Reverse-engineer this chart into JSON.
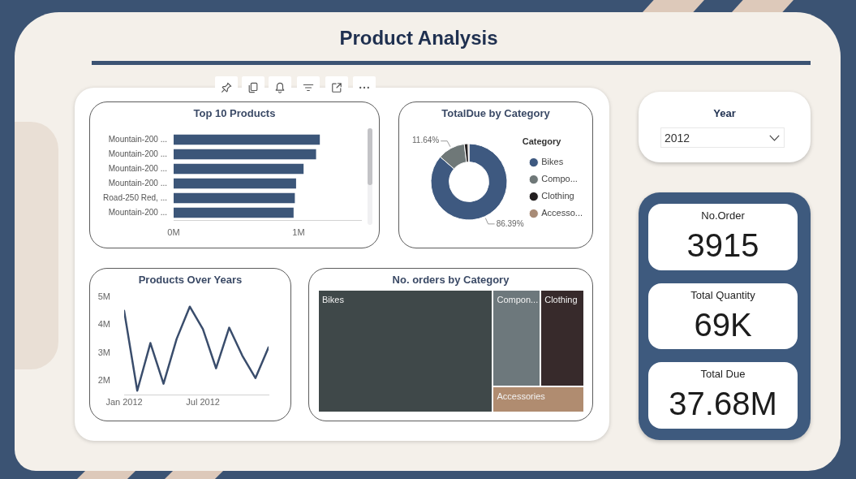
{
  "chart_data": [
    {
      "type": "other",
      "title": "Product Analysis"
    },
    {
      "type": "bar",
      "orientation": "horizontal",
      "title": "Top 10 Products",
      "categories": [
        "Mountain-200 ...",
        "Mountain-200 ...",
        "Mountain-200 ...",
        "Mountain-200 ...",
        "Road-250 Red, ...",
        "Mountain-200 ..."
      ],
      "values": [
        1.17,
        1.14,
        1.04,
        0.98,
        0.97,
        0.96
      ],
      "color": "#3c5679",
      "xlim": [
        0,
        1.5
      ],
      "xticks": [
        {
          "value": 0,
          "label": "0M"
        },
        {
          "value": 1,
          "label": "1M"
        }
      ]
    },
    {
      "type": "donut",
      "title": "TotalDue by Category",
      "categories": [
        "Bikes",
        "Compo...",
        "Clothing",
        "Accesso..."
      ],
      "values": [
        86.39,
        11.64,
        1.62,
        0.35
      ],
      "colors": [
        "#3e5980",
        "#6f7878",
        "#231f20",
        "#a88b76"
      ],
      "value_labels": [
        "86.39%",
        "11.64%",
        null,
        null
      ],
      "legend": "right",
      "legend_title": "Category"
    },
    {
      "type": "other",
      "title": "Year",
      "annotations": [
        "2012"
      ]
    },
    {
      "type": "line",
      "title": "Products Over Years",
      "x": [
        "2012-01",
        "2012-02",
        "2012-03",
        "2012-04",
        "2012-05",
        "2012-06",
        "2012-07",
        "2012-08",
        "2012-09",
        "2012-10",
        "2012-11",
        "2012-12"
      ],
      "values": [
        4.5,
        1.65,
        3.35,
        1.9,
        3.5,
        4.65,
        3.85,
        2.45,
        3.9,
        2.9,
        2.1,
        3.2
      ],
      "color": "#3a4d6c",
      "xlim": [
        "2012-01",
        "2012-12"
      ],
      "xticks": [
        {
          "value": "2012-01",
          "label": "Jan 2012"
        },
        {
          "value": "2012-07",
          "label": "Jul 2012"
        }
      ],
      "ylim": [
        1.5,
        5
      ],
      "yticks": [
        {
          "value": 2,
          "label": "2M"
        },
        {
          "value": 3,
          "label": "3M"
        },
        {
          "value": 4,
          "label": "4M"
        },
        {
          "value": 5,
          "label": "5M"
        }
      ]
    },
    {
      "type": "other",
      "title": "No. orders by Category",
      "categories": [
        "Bikes",
        "Compon...",
        "Clothing",
        "Accessories"
      ],
      "colors": [
        "#3f4849",
        "#6d787c",
        "#372a2b",
        "#b08c70"
      ]
    },
    {
      "type": "other",
      "annotations": [
        "No.Order",
        "3915",
        "Total Quantity",
        "69K",
        "Total Due",
        "37.68M"
      ]
    }
  ]
}
